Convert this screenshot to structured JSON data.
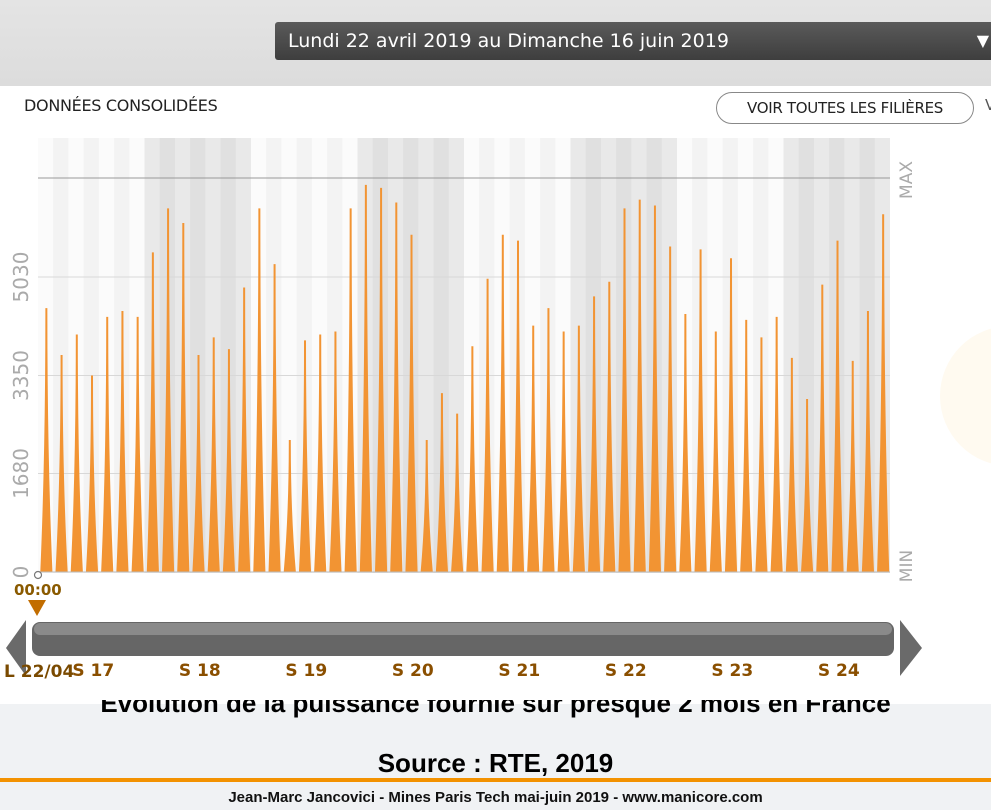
{
  "header": {
    "date_range": "Lundi 22 avril 2019 au Dimanche 16 juin 2019",
    "dropdown_icon": "triangle-down-icon"
  },
  "panel": {
    "title": "DONNÉES CONSOLIDÉES",
    "button_all": "VOIR TOUTES LES FILIÈRES",
    "button_cut": "V"
  },
  "caption": {
    "line1": "Evolution de la puissance fournie sur presque 2 mois en France",
    "line2": "Source : RTE, 2019"
  },
  "footer": "Jean-Marc Jancovici - Mines Paris Tech mai-juin 2019 - www.manicore.com",
  "colors": {
    "bar": "#f29433",
    "grey_band": "#e6e6e6",
    "light_band": "#f3f3f3",
    "scrollbar": "#6a6a6a"
  },
  "chart_data": {
    "type": "area",
    "yticks": [
      0,
      1680,
      3350,
      5030
    ],
    "ylim": [
      0,
      6800
    ],
    "y_right_labels": [
      "MAX",
      "MIN"
    ],
    "x_start_label": "L 22/04",
    "x_start_time": "00:00",
    "week_labels": [
      "S 17",
      "S 18",
      "S 19",
      "S 20",
      "S 21",
      "S 22",
      "S 23",
      "S 24"
    ],
    "days": 56,
    "daily_peaks": [
      4500,
      3700,
      4050,
      3350,
      4350,
      4450,
      4350,
      5450,
      6200,
      5950,
      3700,
      4000,
      3800,
      4850,
      6200,
      5250,
      2250,
      3950,
      4050,
      4100,
      6200,
      6600,
      6550,
      6300,
      5750,
      2250,
      3050,
      2700,
      3850,
      5000,
      5750,
      5650,
      4200,
      4500,
      4100,
      4200,
      4700,
      4950,
      6200,
      6350,
      6250,
      5550,
      4400,
      5500,
      4100,
      5350,
      4300,
      4000,
      4350,
      3650,
      2950,
      4900,
      5650,
      3600,
      4450,
      6100
    ]
  }
}
